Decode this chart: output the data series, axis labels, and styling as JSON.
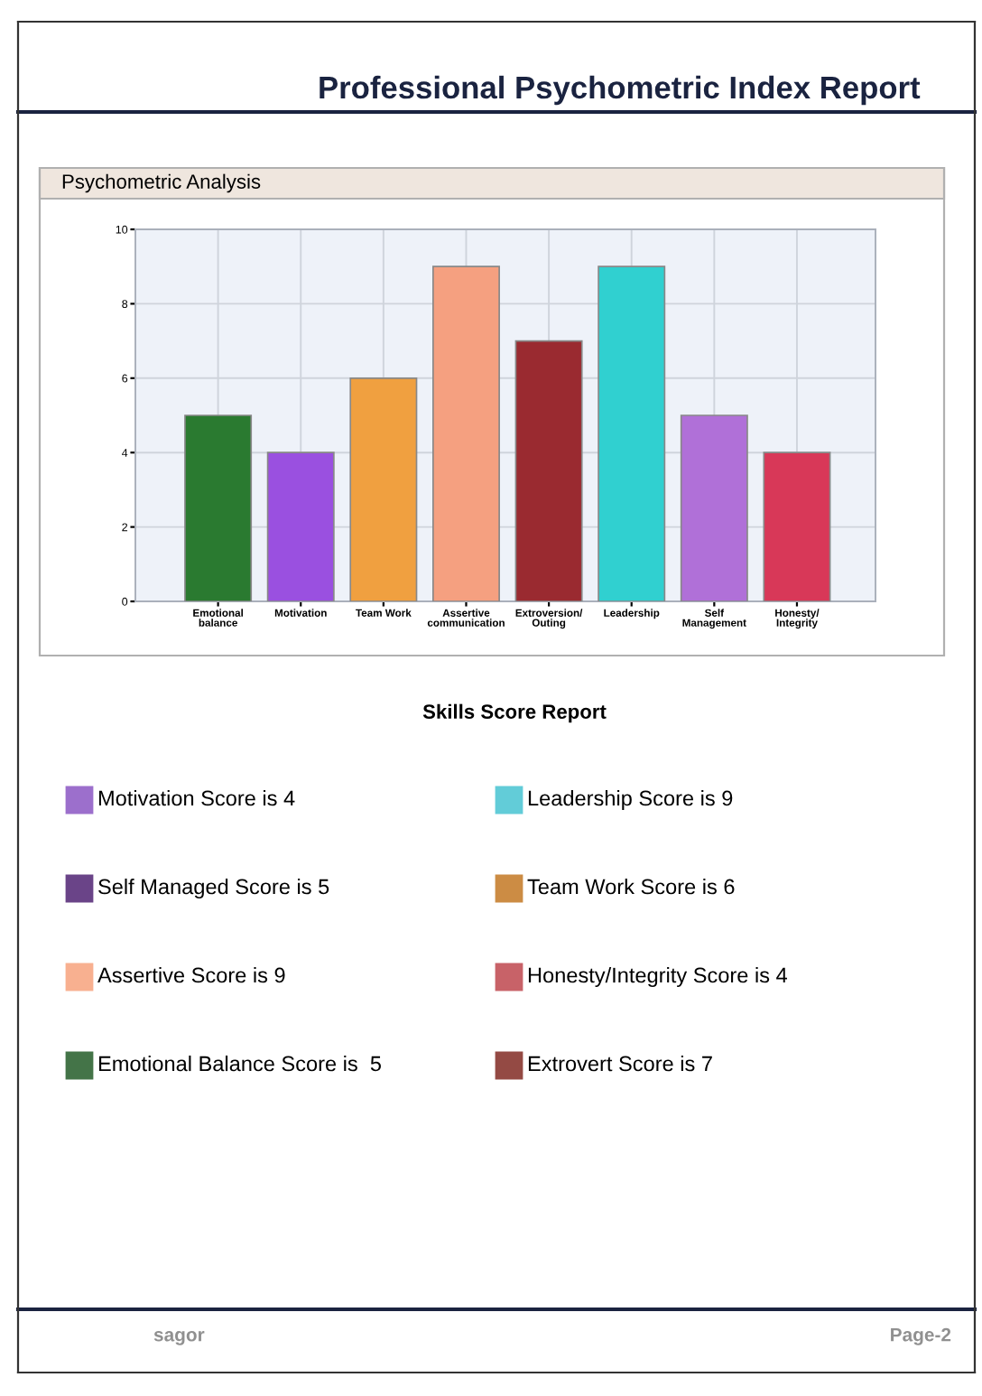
{
  "chart_data": [
    {
      "type": "bar",
      "title": "Professional Psychometric Index Report",
      "subtitle": "Psychometric Analysis",
      "categories": [
        "Emotional\nbalance",
        "Motivation",
        "Team Work",
        "Assertive\ncommunication",
        "Extroversion/\nOuting",
        "Leadership",
        "Self\nManagement",
        "Honesty/\nIntegrity"
      ],
      "values": [
        5,
        4,
        6,
        9,
        7,
        9,
        5,
        4
      ],
      "colors": [
        "#2a7a30",
        "#9a50e0",
        "#f0a040",
        "#f5a080",
        "#9a2a30",
        "#30d0d0",
        "#b070d8",
        "#d83858"
      ],
      "ylim": [
        0,
        10
      ],
      "yticks": [
        0,
        2,
        4,
        6,
        8,
        10
      ],
      "grid": true,
      "legend": false,
      "annotations": [
        "sagor",
        "Page-2"
      ]
    },
    {
      "type": "other",
      "title": "Skills Score Report",
      "annotations": [
        "Motivation Score is 4",
        "Leadership Score is 9",
        "Self Managed Score is 5",
        "Team Work Score is 6",
        "Assertive Score is 9",
        "Honesty/Integrity Score is 4",
        "Emotional Balance Score is  5",
        "Extrovert Score is 7"
      ],
      "colors": [
        "#9c6fcc",
        "#62ccd8",
        "#6a4488",
        "#cc8c44",
        "#f8b090",
        "#c86268",
        "#447448",
        "#944a44"
      ]
    }
  ]
}
